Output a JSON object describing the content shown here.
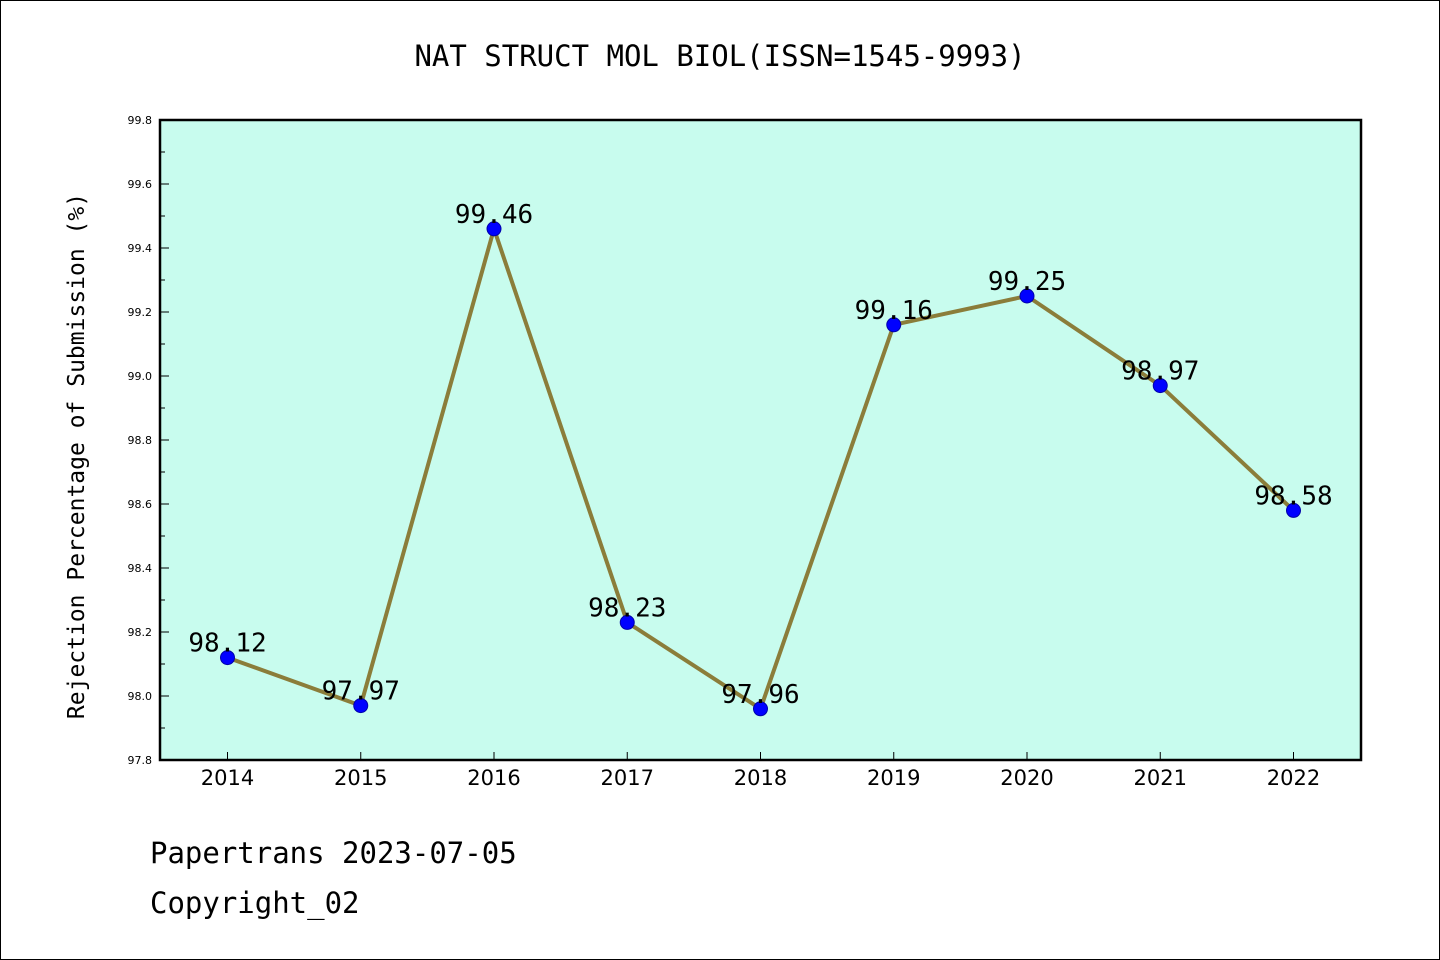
{
  "chart_data": {
    "type": "line",
    "title": "NAT STRUCT MOL BIOL(ISSN=1545-9993)",
    "xlabel": "",
    "ylabel": "Rejection Percentage of Submission (%)",
    "categories": [
      "2014",
      "2015",
      "2016",
      "2017",
      "2018",
      "2019",
      "2020",
      "2021",
      "2022"
    ],
    "series": [
      {
        "values": [
          98.12,
          97.97,
          99.46,
          98.23,
          97.96,
          99.16,
          99.25,
          98.97,
          98.58
        ]
      }
    ],
    "data_labels": [
      "98.12",
      "97.97",
      "99.46",
      "98.23",
      "97.96",
      "99.16",
      "99.25",
      "98.97",
      "98.58"
    ],
    "ylim": [
      97.8,
      99.8
    ],
    "yticks": [
      "97.8",
      "98.0",
      "98.2",
      "98.4",
      "98.6",
      "98.8",
      "99.0",
      "99.2",
      "99.4",
      "99.6",
      "99.8"
    ],
    "grid": false,
    "legend": "none",
    "colors": {
      "plot_background": "#c8fcee",
      "line": "#8b7d3a",
      "marker": "#0000ff"
    }
  },
  "footer": {
    "line1": "Papertrans 2023-07-05",
    "line2": "Copyright_02"
  }
}
